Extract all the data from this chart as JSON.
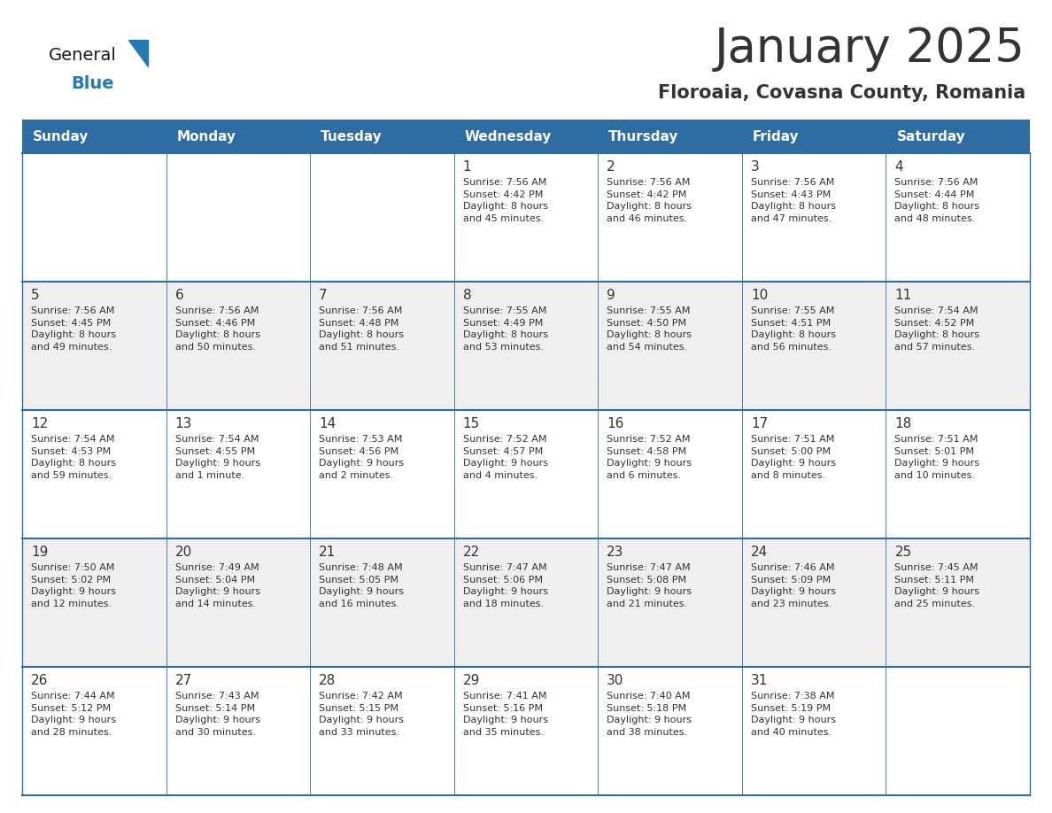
{
  "title": "January 2025",
  "subtitle": "Floroaia, Covasna County, Romania",
  "header_bg": "#2E6DA4",
  "header_text_color": "#FFFFFF",
  "cell_bg_odd": "#EFEFEF",
  "cell_bg_even": "#FFFFFF",
  "border_color": "#2E6DA4",
  "text_color": "#333333",
  "day_headers": [
    "Sunday",
    "Monday",
    "Tuesday",
    "Wednesday",
    "Thursday",
    "Friday",
    "Saturday"
  ],
  "weeks": [
    [
      {
        "day": "",
        "text": ""
      },
      {
        "day": "",
        "text": ""
      },
      {
        "day": "",
        "text": ""
      },
      {
        "day": "1",
        "text": "Sunrise: 7:56 AM\nSunset: 4:42 PM\nDaylight: 8 hours\nand 45 minutes."
      },
      {
        "day": "2",
        "text": "Sunrise: 7:56 AM\nSunset: 4:42 PM\nDaylight: 8 hours\nand 46 minutes."
      },
      {
        "day": "3",
        "text": "Sunrise: 7:56 AM\nSunset: 4:43 PM\nDaylight: 8 hours\nand 47 minutes."
      },
      {
        "day": "4",
        "text": "Sunrise: 7:56 AM\nSunset: 4:44 PM\nDaylight: 8 hours\nand 48 minutes."
      }
    ],
    [
      {
        "day": "5",
        "text": "Sunrise: 7:56 AM\nSunset: 4:45 PM\nDaylight: 8 hours\nand 49 minutes."
      },
      {
        "day": "6",
        "text": "Sunrise: 7:56 AM\nSunset: 4:46 PM\nDaylight: 8 hours\nand 50 minutes."
      },
      {
        "day": "7",
        "text": "Sunrise: 7:56 AM\nSunset: 4:48 PM\nDaylight: 8 hours\nand 51 minutes."
      },
      {
        "day": "8",
        "text": "Sunrise: 7:55 AM\nSunset: 4:49 PM\nDaylight: 8 hours\nand 53 minutes."
      },
      {
        "day": "9",
        "text": "Sunrise: 7:55 AM\nSunset: 4:50 PM\nDaylight: 8 hours\nand 54 minutes."
      },
      {
        "day": "10",
        "text": "Sunrise: 7:55 AM\nSunset: 4:51 PM\nDaylight: 8 hours\nand 56 minutes."
      },
      {
        "day": "11",
        "text": "Sunrise: 7:54 AM\nSunset: 4:52 PM\nDaylight: 8 hours\nand 57 minutes."
      }
    ],
    [
      {
        "day": "12",
        "text": "Sunrise: 7:54 AM\nSunset: 4:53 PM\nDaylight: 8 hours\nand 59 minutes."
      },
      {
        "day": "13",
        "text": "Sunrise: 7:54 AM\nSunset: 4:55 PM\nDaylight: 9 hours\nand 1 minute."
      },
      {
        "day": "14",
        "text": "Sunrise: 7:53 AM\nSunset: 4:56 PM\nDaylight: 9 hours\nand 2 minutes."
      },
      {
        "day": "15",
        "text": "Sunrise: 7:52 AM\nSunset: 4:57 PM\nDaylight: 9 hours\nand 4 minutes."
      },
      {
        "day": "16",
        "text": "Sunrise: 7:52 AM\nSunset: 4:58 PM\nDaylight: 9 hours\nand 6 minutes."
      },
      {
        "day": "17",
        "text": "Sunrise: 7:51 AM\nSunset: 5:00 PM\nDaylight: 9 hours\nand 8 minutes."
      },
      {
        "day": "18",
        "text": "Sunrise: 7:51 AM\nSunset: 5:01 PM\nDaylight: 9 hours\nand 10 minutes."
      }
    ],
    [
      {
        "day": "19",
        "text": "Sunrise: 7:50 AM\nSunset: 5:02 PM\nDaylight: 9 hours\nand 12 minutes."
      },
      {
        "day": "20",
        "text": "Sunrise: 7:49 AM\nSunset: 5:04 PM\nDaylight: 9 hours\nand 14 minutes."
      },
      {
        "day": "21",
        "text": "Sunrise: 7:48 AM\nSunset: 5:05 PM\nDaylight: 9 hours\nand 16 minutes."
      },
      {
        "day": "22",
        "text": "Sunrise: 7:47 AM\nSunset: 5:06 PM\nDaylight: 9 hours\nand 18 minutes."
      },
      {
        "day": "23",
        "text": "Sunrise: 7:47 AM\nSunset: 5:08 PM\nDaylight: 9 hours\nand 21 minutes."
      },
      {
        "day": "24",
        "text": "Sunrise: 7:46 AM\nSunset: 5:09 PM\nDaylight: 9 hours\nand 23 minutes."
      },
      {
        "day": "25",
        "text": "Sunrise: 7:45 AM\nSunset: 5:11 PM\nDaylight: 9 hours\nand 25 minutes."
      }
    ],
    [
      {
        "day": "26",
        "text": "Sunrise: 7:44 AM\nSunset: 5:12 PM\nDaylight: 9 hours\nand 28 minutes."
      },
      {
        "day": "27",
        "text": "Sunrise: 7:43 AM\nSunset: 5:14 PM\nDaylight: 9 hours\nand 30 minutes."
      },
      {
        "day": "28",
        "text": "Sunrise: 7:42 AM\nSunset: 5:15 PM\nDaylight: 9 hours\nand 33 minutes."
      },
      {
        "day": "29",
        "text": "Sunrise: 7:41 AM\nSunset: 5:16 PM\nDaylight: 9 hours\nand 35 minutes."
      },
      {
        "day": "30",
        "text": "Sunrise: 7:40 AM\nSunset: 5:18 PM\nDaylight: 9 hours\nand 38 minutes."
      },
      {
        "day": "31",
        "text": "Sunrise: 7:38 AM\nSunset: 5:19 PM\nDaylight: 9 hours\nand 40 minutes."
      },
      {
        "day": "",
        "text": ""
      }
    ]
  ],
  "logo_text_general": "General",
  "logo_text_blue": "Blue",
  "logo_color_general": "#1a1a1a",
  "logo_color_blue": "#2479B5",
  "fig_width": 11.88,
  "fig_height": 9.18,
  "title_fontsize": 38,
  "subtitle_fontsize": 15,
  "header_fontsize": 11,
  "day_num_fontsize": 11,
  "cell_text_fontsize": 8
}
